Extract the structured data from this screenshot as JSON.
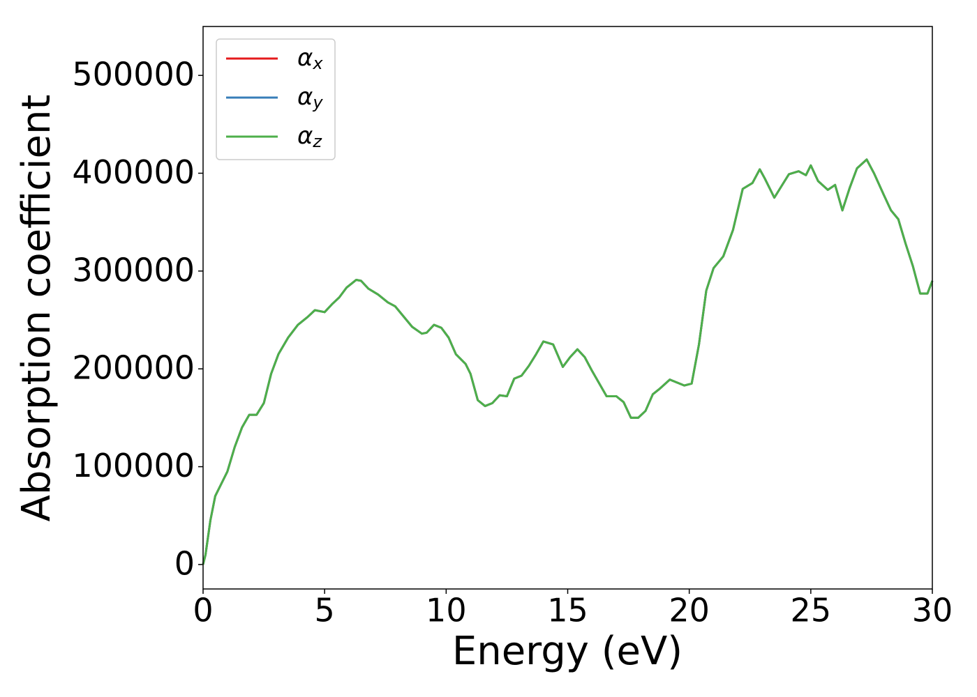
{
  "chart_data": {
    "type": "line",
    "xlabel": "Energy (eV)",
    "ylabel": "Absorption coefficient",
    "x": [
      0,
      0.1,
      0.3,
      0.5,
      0.8,
      1.0,
      1.3,
      1.6,
      1.9,
      2.2,
      2.5,
      2.8,
      3.1,
      3.5,
      3.9,
      4.3,
      4.6,
      5.0,
      5.3,
      5.6,
      5.9,
      6.3,
      6.5,
      6.8,
      7.2,
      7.6,
      7.9,
      8.3,
      8.6,
      9.0,
      9.2,
      9.5,
      9.8,
      10.1,
      10.4,
      10.8,
      11.0,
      11.3,
      11.6,
      11.9,
      12.2,
      12.5,
      12.8,
      13.1,
      13.4,
      13.7,
      14.0,
      14.4,
      14.8,
      15.1,
      15.4,
      15.7,
      16.0,
      16.3,
      16.6,
      17.0,
      17.3,
      17.6,
      17.9,
      18.2,
      18.5,
      18.8,
      19.2,
      19.5,
      19.8,
      20.1,
      20.4,
      20.7,
      21.0,
      21.4,
      21.8,
      22.2,
      22.6,
      22.9,
      23.1,
      23.5,
      23.8,
      24.1,
      24.5,
      24.8,
      25.0,
      25.3,
      25.7,
      26.0,
      26.3,
      26.6,
      26.9,
      27.3,
      27.6,
      28.0,
      28.3,
      28.6,
      28.9,
      29.2,
      29.5,
      29.8,
      30.0
    ],
    "series": [
      {
        "name": "αx",
        "color": "#e41a1c",
        "values": [
          0,
          10000,
          45000,
          70000,
          85000,
          95000,
          120000,
          140000,
          153000,
          153000,
          165000,
          195000,
          215000,
          232000,
          245000,
          253000,
          260000,
          258000,
          266000,
          273000,
          283000,
          291000,
          290000,
          282000,
          276000,
          268000,
          264000,
          252000,
          243000,
          236000,
          237000,
          245000,
          242000,
          232000,
          215000,
          205000,
          195000,
          168000,
          162000,
          165000,
          173000,
          172000,
          190000,
          193000,
          203000,
          215000,
          228000,
          225000,
          202000,
          212000,
          220000,
          212000,
          198000,
          185000,
          172000,
          172000,
          166000,
          150000,
          150000,
          157000,
          174000,
          180000,
          189000,
          186000,
          183000,
          185000,
          225000,
          280000,
          303000,
          315000,
          342000,
          384000,
          390000,
          404000,
          395000,
          375000,
          387000,
          399000,
          402000,
          398000,
          408000,
          392000,
          383000,
          388000,
          362000,
          385000,
          405000,
          414000,
          400000,
          378000,
          362000,
          353000,
          328000,
          305000,
          277000,
          277000,
          290000
        ]
      },
      {
        "name": "αy",
        "color": "#377eb8",
        "values": [
          0,
          10000,
          45000,
          70000,
          85000,
          95000,
          120000,
          140000,
          153000,
          153000,
          165000,
          195000,
          215000,
          232000,
          245000,
          253000,
          260000,
          258000,
          266000,
          273000,
          283000,
          291000,
          290000,
          282000,
          276000,
          268000,
          264000,
          252000,
          243000,
          236000,
          237000,
          245000,
          242000,
          232000,
          215000,
          205000,
          195000,
          168000,
          162000,
          165000,
          173000,
          172000,
          190000,
          193000,
          203000,
          215000,
          228000,
          225000,
          202000,
          212000,
          220000,
          212000,
          198000,
          185000,
          172000,
          172000,
          166000,
          150000,
          150000,
          157000,
          174000,
          180000,
          189000,
          186000,
          183000,
          185000,
          225000,
          280000,
          303000,
          315000,
          342000,
          384000,
          390000,
          404000,
          395000,
          375000,
          387000,
          399000,
          402000,
          398000,
          408000,
          392000,
          383000,
          388000,
          362000,
          385000,
          405000,
          414000,
          400000,
          378000,
          362000,
          353000,
          328000,
          305000,
          277000,
          277000,
          290000
        ]
      },
      {
        "name": "αz",
        "color": "#4daf4a",
        "values": [
          0,
          10000,
          45000,
          70000,
          85000,
          95000,
          120000,
          140000,
          153000,
          153000,
          165000,
          195000,
          215000,
          232000,
          245000,
          253000,
          260000,
          258000,
          266000,
          273000,
          283000,
          291000,
          290000,
          282000,
          276000,
          268000,
          264000,
          252000,
          243000,
          236000,
          237000,
          245000,
          242000,
          232000,
          215000,
          205000,
          195000,
          168000,
          162000,
          165000,
          173000,
          172000,
          190000,
          193000,
          203000,
          215000,
          228000,
          225000,
          202000,
          212000,
          220000,
          212000,
          198000,
          185000,
          172000,
          172000,
          166000,
          150000,
          150000,
          157000,
          174000,
          180000,
          189000,
          186000,
          183000,
          185000,
          225000,
          280000,
          303000,
          315000,
          342000,
          384000,
          390000,
          404000,
          395000,
          375000,
          387000,
          399000,
          402000,
          398000,
          408000,
          392000,
          383000,
          388000,
          362000,
          385000,
          405000,
          414000,
          400000,
          378000,
          362000,
          353000,
          328000,
          305000,
          277000,
          277000,
          290000
        ]
      }
    ],
    "xlim": [
      0,
      30
    ],
    "xticks": [
      0,
      5,
      10,
      15,
      20,
      25,
      30
    ],
    "ylim": [
      -25000,
      550000
    ],
    "yticks": [
      0,
      100000,
      200000,
      300000,
      400000,
      500000
    ],
    "legend": "upper left",
    "grid": false
  }
}
